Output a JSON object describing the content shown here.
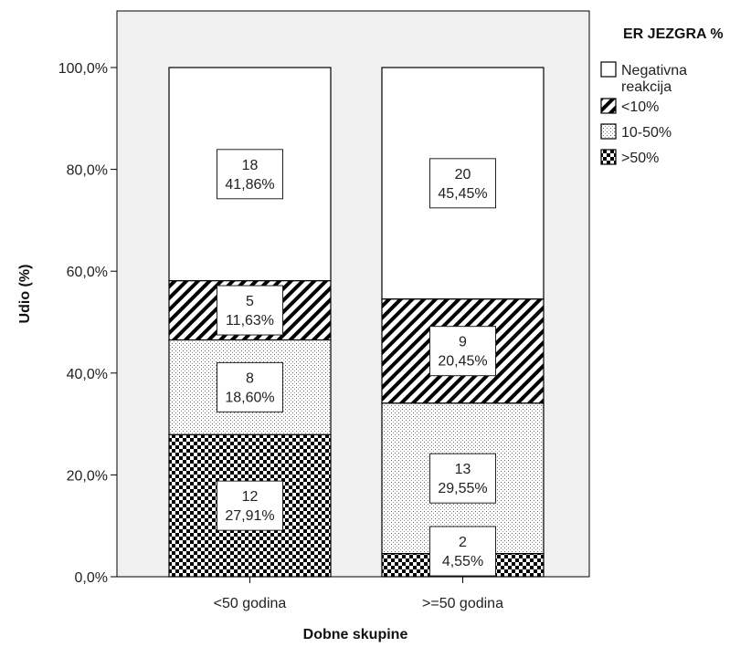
{
  "chart_data": {
    "type": "bar",
    "stacked": true,
    "categories": [
      "<50 godina",
      ">=50 godina"
    ],
    "xlabel": "Dobne skupine",
    "ylabel": "Udio (%)",
    "ylim": [
      0,
      110
    ],
    "yticks": [
      "0,0%",
      "20,0%",
      "40,0%",
      "60,0%",
      "80,0%",
      "100,0%"
    ],
    "ytick_values": [
      0,
      20,
      40,
      60,
      80,
      100
    ],
    "legend_title": "ER JEZGRA %",
    "legend_position": "top-right",
    "series": [
      {
        "name": ">50%",
        "pattern": "checker",
        "counts": [
          "12",
          "2"
        ],
        "percents": [
          27.91,
          4.55
        ],
        "percent_labels": [
          "27,91%",
          "4,55%"
        ]
      },
      {
        "name": "10-50%",
        "pattern": "dots",
        "counts": [
          "8",
          "13"
        ],
        "percents": [
          18.6,
          29.55
        ],
        "percent_labels": [
          "18,60%",
          "29,55%"
        ]
      },
      {
        "name": "<10%",
        "pattern": "hatch",
        "counts": [
          "5",
          "9"
        ],
        "percents": [
          11.63,
          20.45
        ],
        "percent_labels": [
          "11,63%",
          "20,45%"
        ]
      },
      {
        "name": "Negativna reakcija",
        "name_lines": [
          "Negativna",
          "reakcija"
        ],
        "pattern": "white",
        "counts": [
          "18",
          "20"
        ],
        "percents": [
          41.86,
          45.45
        ],
        "percent_labels": [
          "41,86%",
          "45,45%"
        ]
      }
    ],
    "legend_order": [
      3,
      2,
      1,
      0
    ],
    "colors": {
      "plot_bg": "#f0f0f0",
      "bar_fill": "#ffffff",
      "ink": "#000000"
    }
  }
}
